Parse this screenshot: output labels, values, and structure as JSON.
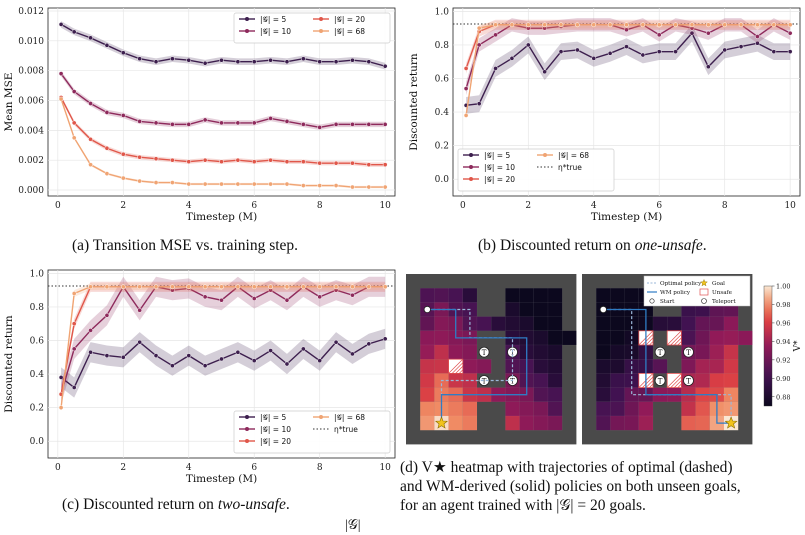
{
  "chart_data": [
    {
      "id": "a",
      "type": "line",
      "xlabel": "Timestep (M)",
      "ylabel": "Mean MSE",
      "xlim": [
        -0.3,
        10.3
      ],
      "ylim": [
        -0.0004,
        0.0122
      ],
      "xticks": [
        "0",
        "2",
        "4",
        "6",
        "8",
        "10"
      ],
      "yticks": [
        "0.000",
        "0.002",
        "0.004",
        "0.006",
        "0.008",
        "0.010",
        "0.012"
      ],
      "grid": true,
      "legend_placement": "top-right",
      "legend_columns": 2,
      "x": [
        0.1,
        0.5,
        1.0,
        1.5,
        2.0,
        2.5,
        3.0,
        3.5,
        4.0,
        4.5,
        5.0,
        5.5,
        6.0,
        6.5,
        7.0,
        7.5,
        8.0,
        8.5,
        9.0,
        9.5,
        10.0
      ],
      "series": [
        {
          "name": "|𝒢| = 5",
          "color": "#3d1f4e",
          "band": 0.00022,
          "values": [
            0.0111,
            0.0106,
            0.0102,
            0.0097,
            0.0092,
            0.0088,
            0.0086,
            0.0088,
            0.0087,
            0.0085,
            0.0087,
            0.0086,
            0.0086,
            0.0087,
            0.0086,
            0.0088,
            0.0086,
            0.0086,
            0.0087,
            0.0086,
            0.0083
          ]
        },
        {
          "name": "|𝒢| = 10",
          "color": "#8e2a5c",
          "band": 0.00018,
          "values": [
            0.0078,
            0.0066,
            0.0058,
            0.0052,
            0.005,
            0.0046,
            0.0045,
            0.0044,
            0.0044,
            0.0047,
            0.0045,
            0.0045,
            0.0045,
            0.0048,
            0.0046,
            0.0044,
            0.0042,
            0.0044,
            0.0044,
            0.0044,
            0.0044
          ]
        },
        {
          "name": "|𝒢| = 20",
          "color": "#e0574a",
          "band": 0.00015,
          "values": [
            0.0062,
            0.0045,
            0.0034,
            0.0028,
            0.0024,
            0.0022,
            0.0021,
            0.002,
            0.0019,
            0.002,
            0.0019,
            0.002,
            0.0019,
            0.002,
            0.0019,
            0.0019,
            0.0018,
            0.0018,
            0.0018,
            0.0017,
            0.0017
          ]
        },
        {
          "name": "|𝒢| = 68",
          "color": "#f0a473",
          "band": 8e-05,
          "values": [
            0.0061,
            0.0035,
            0.0017,
            0.0011,
            0.0008,
            0.0006,
            0.0005,
            0.0005,
            0.0004,
            0.0004,
            0.0004,
            0.0004,
            0.0004,
            0.0004,
            0.0004,
            0.0003,
            0.0003,
            0.0003,
            0.0002,
            0.0002,
            0.0002
          ]
        }
      ]
    },
    {
      "id": "b",
      "type": "line",
      "xlabel": "Timestep (M)",
      "ylabel": "Discounted return",
      "xlim": [
        -0.3,
        10.3
      ],
      "ylim": [
        -0.1,
        1.02
      ],
      "xticks": [
        "0",
        "2",
        "4",
        "6",
        "8",
        "10"
      ],
      "yticks": [
        "0.0",
        "0.2",
        "0.4",
        "0.6",
        "0.8",
        "1.0"
      ],
      "grid": true,
      "legend_placement": "bottom-left",
      "legend_columns": 2,
      "reference_line": {
        "name": "η*true",
        "value": 0.925,
        "style": "dotted"
      },
      "x": [
        0.1,
        0.5,
        1.0,
        1.5,
        2.0,
        2.5,
        3.0,
        3.5,
        4.0,
        4.5,
        5.0,
        5.5,
        6.0,
        6.5,
        7.0,
        7.5,
        8.0,
        8.5,
        9.0,
        9.5,
        10.0
      ],
      "series": [
        {
          "name": "|𝒢| = 5",
          "color": "#3d1f4e",
          "band": 0.05,
          "values": [
            0.44,
            0.45,
            0.66,
            0.72,
            0.8,
            0.64,
            0.76,
            0.77,
            0.72,
            0.75,
            0.79,
            0.74,
            0.76,
            0.76,
            0.87,
            0.67,
            0.77,
            0.79,
            0.81,
            0.76,
            0.76
          ]
        },
        {
          "name": "|𝒢| = 10",
          "color": "#8e2a5c",
          "band": 0.04,
          "values": [
            0.54,
            0.8,
            0.86,
            0.92,
            0.9,
            0.9,
            0.91,
            0.92,
            0.92,
            0.92,
            0.89,
            0.92,
            0.86,
            0.92,
            0.9,
            0.87,
            0.92,
            0.92,
            0.85,
            0.92,
            0.87
          ]
        },
        {
          "name": "|𝒢| = 20",
          "color": "#e0574a",
          "band": 0.03,
          "values": [
            0.66,
            0.88,
            0.92,
            0.92,
            0.92,
            0.92,
            0.92,
            0.92,
            0.92,
            0.92,
            0.92,
            0.92,
            0.92,
            0.92,
            0.92,
            0.92,
            0.92,
            0.92,
            0.92,
            0.92,
            0.92
          ]
        },
        {
          "name": "|𝒢| = 68",
          "color": "#f0a473",
          "band": 0.02,
          "values": [
            0.38,
            0.9,
            0.92,
            0.92,
            0.92,
            0.92,
            0.92,
            0.92,
            0.92,
            0.92,
            0.92,
            0.92,
            0.92,
            0.92,
            0.92,
            0.92,
            0.92,
            0.92,
            0.92,
            0.92,
            0.92
          ]
        }
      ]
    },
    {
      "id": "c",
      "type": "line",
      "xlabel": "Timestep (M)",
      "ylabel": "Discounted return",
      "xlim": [
        -0.3,
        10.3
      ],
      "ylim": [
        -0.1,
        1.02
      ],
      "xticks": [
        "0",
        "2",
        "4",
        "6",
        "8",
        "10"
      ],
      "yticks": [
        "0.0",
        "0.2",
        "0.4",
        "0.6",
        "0.8",
        "1.0"
      ],
      "grid": true,
      "legend_placement": "bottom-right",
      "legend_columns": 2,
      "reference_line": {
        "name": "η*true",
        "value": 0.925,
        "style": "dotted"
      },
      "x": [
        0.1,
        0.5,
        1.0,
        1.5,
        2.0,
        2.5,
        3.0,
        3.5,
        4.0,
        4.5,
        5.0,
        5.5,
        6.0,
        6.5,
        7.0,
        7.5,
        8.0,
        8.5,
        9.0,
        9.5,
        10.0
      ],
      "series": [
        {
          "name": "|𝒢| = 5",
          "color": "#3d1f4e",
          "band": 0.06,
          "values": [
            0.38,
            0.32,
            0.53,
            0.51,
            0.5,
            0.59,
            0.51,
            0.45,
            0.51,
            0.45,
            0.49,
            0.53,
            0.48,
            0.54,
            0.46,
            0.55,
            0.48,
            0.59,
            0.52,
            0.58,
            0.61
          ]
        },
        {
          "name": "|𝒢| = 10",
          "color": "#8e2a5c",
          "band": 0.06,
          "values": [
            0.28,
            0.55,
            0.66,
            0.75,
            0.92,
            0.78,
            0.92,
            0.9,
            0.91,
            0.86,
            0.84,
            0.92,
            0.85,
            0.9,
            0.84,
            0.92,
            0.86,
            0.9,
            0.87,
            0.92,
            0.92
          ]
        },
        {
          "name": "|𝒢| = 20",
          "color": "#e0574a",
          "band": 0.03,
          "values": [
            0.28,
            0.7,
            0.92,
            0.92,
            0.92,
            0.92,
            0.92,
            0.92,
            0.92,
            0.92,
            0.92,
            0.92,
            0.92,
            0.92,
            0.92,
            0.92,
            0.92,
            0.92,
            0.92,
            0.92,
            0.92
          ]
        },
        {
          "name": "|𝒢| = 68",
          "color": "#f0a473",
          "band": 0.02,
          "values": [
            0.2,
            0.88,
            0.92,
            0.92,
            0.92,
            0.92,
            0.92,
            0.92,
            0.92,
            0.92,
            0.92,
            0.92,
            0.92,
            0.92,
            0.92,
            0.92,
            0.92,
            0.92,
            0.92,
            0.92,
            0.92
          ]
        }
      ]
    },
    {
      "id": "d",
      "type": "heatmap",
      "grid_size": [
        12,
        12
      ],
      "colorbar_label": "V*",
      "colorbar_ticks": [
        "0.88",
        "0.90",
        "0.92",
        "0.94",
        "0.96",
        "0.98",
        "1.00"
      ],
      "colorbar_range": [
        0.87,
        1.0
      ],
      "legend_entries": [
        "Optimal policy",
        "WM policy",
        "Start",
        "Goal",
        "Unsafe",
        "Teleport"
      ],
      "teleport_label": "T"
    }
  ],
  "captions": {
    "a": "(a) Transition MSE vs. training step.",
    "b_prefix": "(b) Discounted return on ",
    "b_em": "one-unsafe",
    "b_suffix": ".",
    "c_prefix": "(c) Discounted return on ",
    "c_em": "two-unsafe",
    "c_suffix": ".",
    "d_line1": "(d) V★ heatmap with trajectories of optimal (dashed)",
    "d_line2": "and WM-derived (solid) policies on both unseen goals,",
    "d_line3": "for an agent trained with |𝒢| = 20 goals.",
    "fragment": "|𝒢|"
  }
}
